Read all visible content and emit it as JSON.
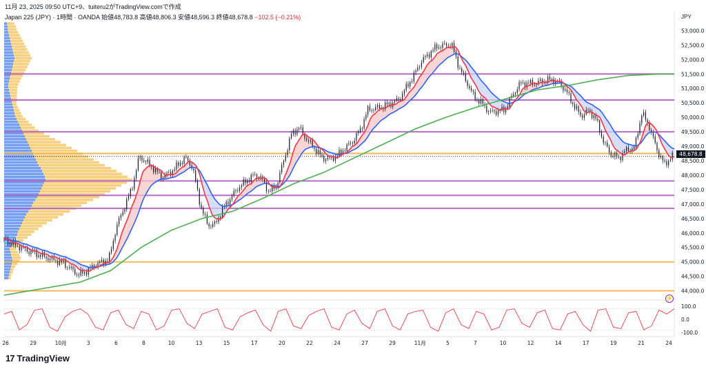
{
  "header": {
    "timestamp_line": "11月 23, 2025 09:50 UTC+9、tuiteru2がTradingView.comで作成",
    "symbol": "Japan 225 (JPY) · 1時間 · OANDA",
    "ohlc": "始値48,783.8  高値48,806.3  安値48,596.3  終値48,678.8",
    "change": "−102.5 (−0.21%)",
    "currency": "JPY"
  },
  "brand": {
    "logo": "17",
    "name": "TradingView"
  },
  "last_price_label": "48,678.8",
  "colors": {
    "candle": "#131722",
    "ema_fast": "#f23645",
    "ema_slow": "#2962ff",
    "sma_long": "#4caf50",
    "fill_up": "#f8c4c4",
    "fill_down": "#c7d2f5",
    "hline_purple": "#b05cc4",
    "hline_orange": "#f6b146",
    "vp_blue": "#5b8def",
    "vp_orange": "#f6c868",
    "oscillator": "#f23645"
  },
  "chart_data": {
    "type": "candlestick",
    "timeframe": "1h",
    "y_axis": {
      "ticks": [
        "53,000.0",
        "52,500.0",
        "52,000.0",
        "51,500.0",
        "51,000.0",
        "50,500.0",
        "50,000.0",
        "49,500.0",
        "49,000.0",
        "48,500.0",
        "48,000.0",
        "47,500.0",
        "47,000.0",
        "46,500.0",
        "46,000.0",
        "45,500.0",
        "45,000.0",
        "44,500.0",
        "44,000.0"
      ],
      "ylim": [
        43800,
        53200
      ]
    },
    "x_axis": {
      "ticks": [
        "26",
        "29",
        "10月",
        "3",
        "6",
        "8",
        "10",
        "13",
        "15",
        "17",
        "20",
        "22",
        "24",
        "27",
        "29",
        "11月",
        "5",
        "7",
        "10",
        "12",
        "14",
        "17",
        "19",
        "21",
        "24"
      ]
    },
    "price_path": [
      [
        0,
        45750
      ],
      [
        3,
        45400
      ],
      [
        6,
        45150
      ],
      [
        8,
        45000
      ],
      [
        10,
        44600
      ],
      [
        11,
        44700
      ],
      [
        12,
        44900
      ],
      [
        13,
        45000
      ],
      [
        14,
        45100
      ],
      [
        15,
        46200
      ],
      [
        17,
        47500
      ],
      [
        18,
        48600
      ],
      [
        19,
        48400
      ],
      [
        21,
        47900
      ],
      [
        22,
        48050
      ],
      [
        24,
        48600
      ],
      [
        25,
        48300
      ],
      [
        26,
        47000
      ],
      [
        27,
        46300
      ],
      [
        28,
        46350
      ],
      [
        29,
        46900
      ],
      [
        31,
        47600
      ],
      [
        33,
        48000
      ],
      [
        34,
        47900
      ],
      [
        35,
        47400
      ],
      [
        36,
        47600
      ],
      [
        38,
        49400
      ],
      [
        39,
        49600
      ],
      [
        40,
        49200
      ],
      [
        41,
        48900
      ],
      [
        42,
        48600
      ],
      [
        43,
        48550
      ],
      [
        44,
        48700
      ],
      [
        46,
        49200
      ],
      [
        47,
        49600
      ],
      [
        48,
        50300
      ],
      [
        50,
        50400
      ],
      [
        52,
        50600
      ],
      [
        53,
        51000
      ],
      [
        54,
        51400
      ],
      [
        55,
        51900
      ],
      [
        57,
        52400
      ],
      [
        58,
        52450
      ],
      [
        59,
        52500
      ],
      [
        60,
        51700
      ],
      [
        61,
        51200
      ],
      [
        62,
        50700
      ],
      [
        63,
        50500
      ],
      [
        64,
        50200
      ],
      [
        66,
        50300
      ],
      [
        67,
        50800
      ],
      [
        68,
        51200
      ],
      [
        70,
        51200
      ],
      [
        72,
        51300
      ],
      [
        73,
        51200
      ],
      [
        74,
        50900
      ],
      [
        75,
        50400
      ],
      [
        76,
        50000
      ],
      [
        77,
        50200
      ],
      [
        78,
        49900
      ],
      [
        79,
        49100
      ],
      [
        80,
        48700
      ],
      [
        81,
        48600
      ],
      [
        82,
        48900
      ],
      [
        83,
        48950
      ],
      [
        84,
        50200
      ],
      [
        85,
        49700
      ],
      [
        86,
        48900
      ],
      [
        87,
        48400
      ],
      [
        88,
        48700
      ]
    ],
    "series": [
      {
        "name": "",
        "kind": "ema_fast",
        "color": "#f23645"
      },
      {
        "name": "",
        "kind": "ema_slow",
        "color": "#2962ff"
      },
      {
        "name": "",
        "kind": "sma_long",
        "color": "#4caf50",
        "points": [
          [
            0,
            43850
          ],
          [
            10,
            44300
          ],
          [
            14,
            44700
          ],
          [
            18,
            45500
          ],
          [
            22,
            46100
          ],
          [
            26,
            46500
          ],
          [
            30,
            46750
          ],
          [
            34,
            47200
          ],
          [
            38,
            47700
          ],
          [
            42,
            48100
          ],
          [
            46,
            48600
          ],
          [
            50,
            49100
          ],
          [
            54,
            49600
          ],
          [
            58,
            50000
          ],
          [
            62,
            50350
          ],
          [
            66,
            50650
          ],
          [
            70,
            50950
          ],
          [
            74,
            51100
          ],
          [
            78,
            51300
          ],
          [
            82,
            51450
          ],
          [
            86,
            51500
          ],
          [
            88,
            51500
          ]
        ]
      }
    ],
    "horizontal_levels": [
      {
        "value": 51500,
        "color": "purple"
      },
      {
        "value": 50600,
        "color": "purple"
      },
      {
        "value": 49500,
        "color": "purple"
      },
      {
        "value": 48750,
        "color": "orange"
      },
      {
        "value": 48650,
        "color": "dark-dotted"
      },
      {
        "value": 47800,
        "color": "purple"
      },
      {
        "value": 47300,
        "color": "purple"
      },
      {
        "value": 46850,
        "color": "purple"
      },
      {
        "value": 45000,
        "color": "orange"
      },
      {
        "value": 44000,
        "color": "orange"
      }
    ],
    "volume_profile": {
      "price_step": 100,
      "blue": [
        12,
        14,
        16,
        18,
        20,
        22,
        24,
        22,
        20,
        18,
        16,
        22,
        26,
        30,
        34,
        38,
        40,
        44,
        48,
        52,
        56,
        60,
        64,
        70,
        76,
        80,
        84,
        90,
        96,
        100,
        104,
        108,
        112,
        116,
        120,
        118,
        114,
        110,
        106,
        100,
        96,
        92,
        88,
        84,
        80,
        76,
        72,
        68,
        64,
        60,
        56,
        52,
        48,
        44,
        40,
        36,
        32,
        30,
        28,
        26,
        24,
        22,
        20,
        18,
        16,
        14,
        12,
        12,
        14,
        16,
        18,
        20,
        22,
        24,
        26,
        28,
        30,
        28,
        26,
        24,
        22,
        20,
        18,
        16,
        14,
        12,
        10,
        10,
        8,
        8,
        6,
        6
      ],
      "orange": [
        6,
        6,
        8,
        8,
        10,
        14,
        18,
        22,
        20,
        18,
        16,
        14,
        18,
        22,
        28,
        34,
        40,
        46,
        52,
        60,
        70,
        80,
        90,
        100,
        110,
        120,
        130,
        140,
        150,
        160,
        170,
        180,
        190,
        200,
        210,
        200,
        190,
        180,
        170,
        160,
        150,
        140,
        130,
        120,
        110,
        100,
        90,
        80,
        70,
        60,
        50,
        40,
        34,
        30,
        26,
        22,
        18,
        16,
        14,
        12,
        10,
        12,
        14,
        16,
        18,
        20,
        22,
        24,
        26,
        28,
        30,
        32,
        34,
        36,
        38,
        40,
        42,
        40,
        38,
        36,
        34,
        32,
        30,
        28,
        26,
        24,
        22,
        20,
        18,
        16,
        14,
        12
      ]
    },
    "oscillator": {
      "ticks": [
        "100.0",
        "0.0",
        "-100.0"
      ],
      "ylim": [
        -120,
        120
      ],
      "values": [
        40,
        60,
        -80,
        -40,
        70,
        80,
        -60,
        -90,
        20,
        60,
        80,
        40,
        -60,
        -80,
        50,
        70,
        -40,
        -70,
        60,
        40,
        -80,
        -50,
        70,
        80,
        -30,
        -70,
        40,
        60,
        80,
        -60,
        -80,
        20,
        50,
        70,
        -40,
        -90,
        60,
        80,
        -50,
        -70,
        30,
        60,
        80,
        -60,
        -80,
        40,
        70,
        -30,
        -70,
        60,
        80,
        -50,
        -80,
        40,
        60,
        70,
        -60,
        -90,
        50,
        80,
        -40,
        -70,
        60,
        40,
        -80,
        -60,
        70,
        80,
        -30,
        -60,
        50,
        70,
        -70,
        -80,
        40,
        60,
        -40,
        -90,
        70,
        80,
        -60,
        -70,
        50,
        60,
        -80,
        -50,
        70,
        40,
        80
      ]
    }
  }
}
